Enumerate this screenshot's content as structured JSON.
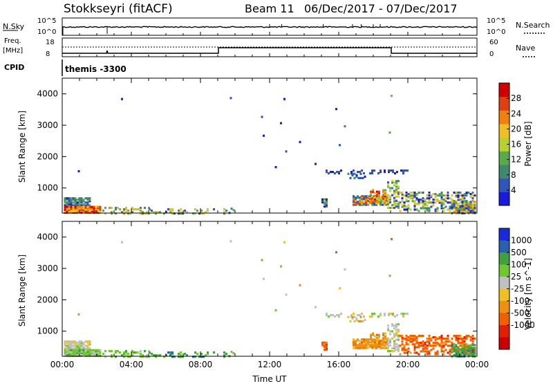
{
  "header": {
    "title": "Stokkseyri (fitACF)",
    "beam": "Beam 11",
    "date_range": "06/Dec/2017 - 07/Dec/2017"
  },
  "top_panels": {
    "nsky_label": "N.Sky",
    "nsky_ticks": [
      "10^5",
      "10^0"
    ],
    "nsearch_label": "N.Search",
    "nsearch_ticks": [
      "10^5",
      "10^0"
    ],
    "freq_label": "Freq.",
    "freq_unit": "[MHz]",
    "freq_ticks": [
      "18",
      "8"
    ],
    "nave_label": "Nave",
    "nave_ticks": [
      "60",
      "0"
    ],
    "cpid_label": "CPID",
    "cpid_value": "themis -3300"
  },
  "colors": {
    "power": [
      "#1a1adf",
      "#2f56b8",
      "#3f8a6e",
      "#5aaa4a",
      "#b8d030",
      "#f0c020",
      "#f08010",
      "#e04010",
      "#d00000"
    ],
    "velocity": [
      "#1a2ad8",
      "#2a60b0",
      "#40a040",
      "#70c830",
      "#c0c0c0",
      "#f0c020",
      "#f09010",
      "#f06000",
      "#e02000",
      "#cc0000"
    ],
    "trace": "#000000"
  },
  "chart_data": [
    {
      "type": "heatmap",
      "name": "power",
      "ylabel": "Slant Range [km]",
      "ylim": [
        200,
        4500
      ],
      "yticks": [
        "1000",
        "2000",
        "3000",
        "4000"
      ],
      "xlim": [
        0,
        24
      ],
      "xticks": [
        "00:00",
        "04:00",
        "08:00",
        "12:00",
        "16:00",
        "20:00",
        "00:00"
      ],
      "colorbar_label": "Power [dB]",
      "colorbar_ticks": [
        "4",
        "8",
        "12",
        "16",
        "20",
        "24",
        "28"
      ],
      "colorbar_range": [
        0,
        32
      ]
    },
    {
      "type": "heatmap",
      "name": "velocity",
      "ylabel": "Slant Range [km]",
      "ylim": [
        200,
        4500
      ],
      "yticks": [
        "1000",
        "2000",
        "3000",
        "4000"
      ],
      "xlim": [
        0,
        24
      ],
      "xticks": [
        "00:00",
        "04:00",
        "08:00",
        "12:00",
        "16:00",
        "20:00",
        "00:00"
      ],
      "xlabel": "Time UT",
      "colorbar_label": "Velocity [m s^-1]",
      "colorbar_ticks": [
        "1000",
        "500",
        "100",
        "25",
        "-25",
        "-100",
        "-500",
        "-1000"
      ]
    }
  ]
}
